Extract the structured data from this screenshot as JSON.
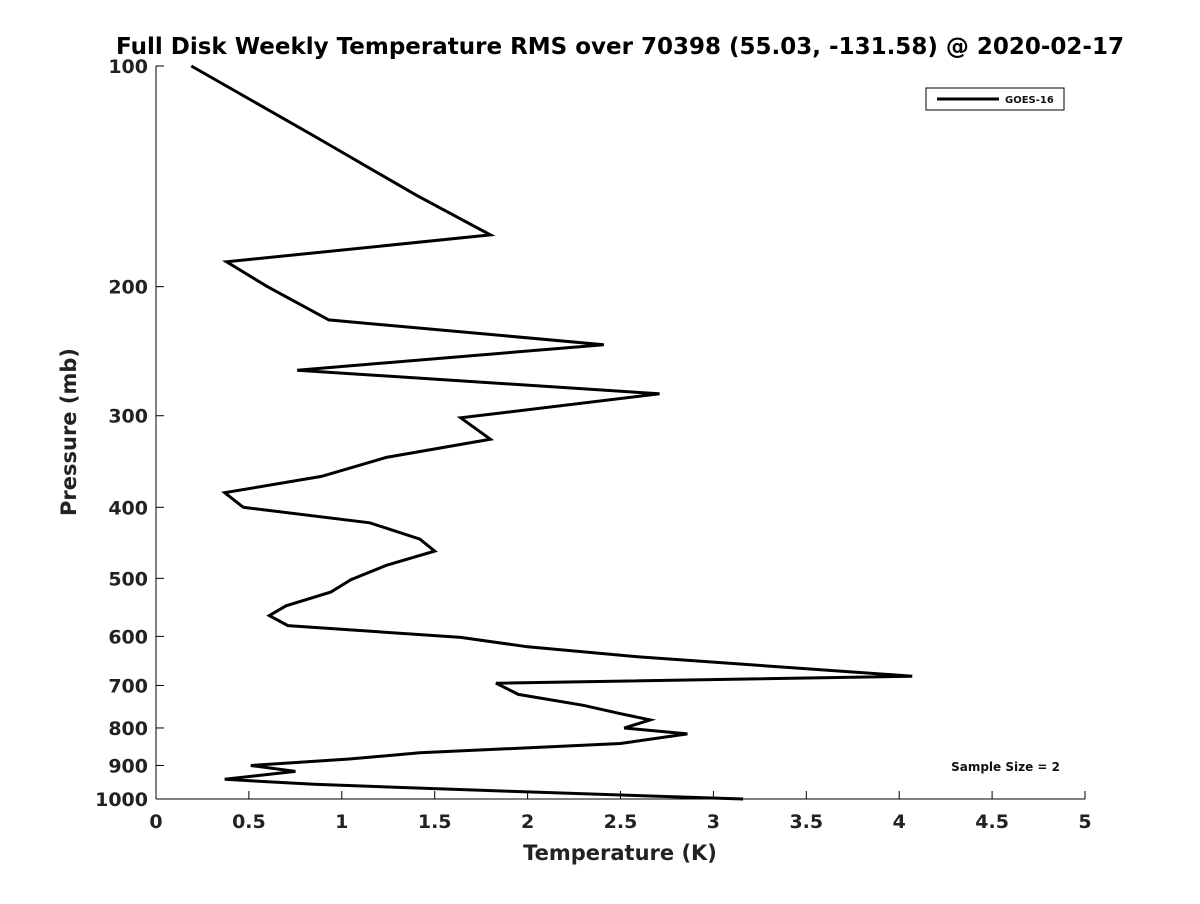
{
  "chart_data": {
    "type": "line",
    "title": "Full Disk Weekly Temperature RMS over 70398 (55.03, -131.58) @ 2020-02-17",
    "xlabel": "Temperature (K)",
    "ylabel": "Pressure (mb)",
    "xlim": [
      0,
      5
    ],
    "ylim": [
      100,
      1000
    ],
    "y_scale": "log",
    "y_reversed": true,
    "grid": false,
    "x_ticks": [
      0,
      0.5,
      1,
      1.5,
      2,
      2.5,
      3,
      3.5,
      4,
      4.5,
      5
    ],
    "x_tick_labels": [
      "0",
      "0.5",
      "1",
      "1.5",
      "2",
      "2.5",
      "3",
      "3.5",
      "4",
      "4.5",
      "5"
    ],
    "y_ticks": [
      100,
      200,
      300,
      400,
      500,
      600,
      700,
      800,
      900,
      1000
    ],
    "y_tick_labels": [
      "100",
      "200",
      "300",
      "400",
      "500",
      "600",
      "700",
      "800",
      "900",
      "1000"
    ],
    "legend": {
      "position": "top-right",
      "entries": [
        "GOES-16"
      ]
    },
    "annotation": "Sample Size = 2",
    "series": [
      {
        "name": "GOES-16",
        "color": "#000000",
        "points": [
          [
            0.19,
            100
          ],
          [
            0.86,
            125
          ],
          [
            1.4,
            150
          ],
          [
            1.8,
            170
          ],
          [
            0.38,
            185
          ],
          [
            0.6,
            200
          ],
          [
            0.93,
            222
          ],
          [
            2.41,
            240
          ],
          [
            0.76,
            260
          ],
          [
            2.71,
            280
          ],
          [
            1.64,
            302
          ],
          [
            1.8,
            323
          ],
          [
            1.24,
            342
          ],
          [
            0.89,
            363
          ],
          [
            0.37,
            382
          ],
          [
            0.47,
            400
          ],
          [
            1.15,
            420
          ],
          [
            1.42,
            442
          ],
          [
            1.5,
            459
          ],
          [
            1.24,
            480
          ],
          [
            1.05,
            502
          ],
          [
            0.94,
            522
          ],
          [
            0.7,
            545
          ],
          [
            0.61,
            562
          ],
          [
            0.71,
            580
          ],
          [
            1.64,
            602
          ],
          [
            2.0,
            620
          ],
          [
            2.6,
            640
          ],
          [
            4.07,
            680
          ],
          [
            1.83,
            695
          ],
          [
            1.95,
            720
          ],
          [
            2.3,
            745
          ],
          [
            2.5,
            765
          ],
          [
            2.66,
            780
          ],
          [
            2.52,
            800
          ],
          [
            2.86,
            815
          ],
          [
            2.5,
            840
          ],
          [
            1.42,
            865
          ],
          [
            1.04,
            882
          ],
          [
            0.51,
            900
          ],
          [
            0.75,
            917
          ],
          [
            0.37,
            940
          ],
          [
            0.85,
            955
          ],
          [
            1.9,
            976
          ],
          [
            3.16,
            1000
          ]
        ]
      }
    ]
  }
}
